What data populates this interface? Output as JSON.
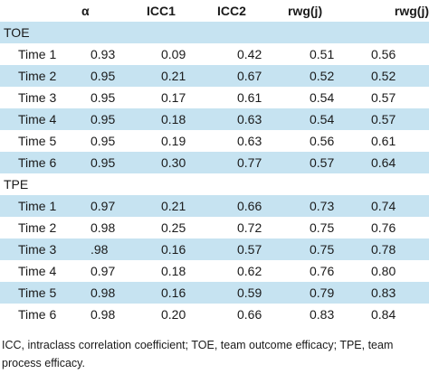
{
  "header": {
    "blank": "",
    "alpha": "α",
    "icc1": "ICC1",
    "icc2": "ICC2",
    "rwg1": "rwg(j)",
    "rwg2": "rwg(j)"
  },
  "groups": [
    {
      "name": "TOE",
      "rows": [
        {
          "label": "Time 1",
          "alpha": "0.93",
          "icc1": "0.09",
          "icc2": "0.42",
          "rwg1": "0.51",
          "rwg2": "0.56"
        },
        {
          "label": "Time 2",
          "alpha": "0.95",
          "icc1": "0.21",
          "icc2": "0.67",
          "rwg1": "0.52",
          "rwg2": "0.52"
        },
        {
          "label": "Time 3",
          "alpha": "0.95",
          "icc1": "0.17",
          "icc2": "0.61",
          "rwg1": "0.54",
          "rwg2": "0.57"
        },
        {
          "label": "Time 4",
          "alpha": "0.95",
          "icc1": "0.18",
          "icc2": "0.63",
          "rwg1": "0.54",
          "rwg2": "0.57"
        },
        {
          "label": "Time 5",
          "alpha": "0.95",
          "icc1": "0.19",
          "icc2": "0.63",
          "rwg1": "0.56",
          "rwg2": "0.61"
        },
        {
          "label": "Time 6",
          "alpha": "0.95",
          "icc1": "0.30",
          "icc2": "0.77",
          "rwg1": "0.57",
          "rwg2": "0.64"
        }
      ]
    },
    {
      "name": "TPE",
      "rows": [
        {
          "label": "Time 1",
          "alpha": "0.97",
          "icc1": "0.21",
          "icc2": "0.66",
          "rwg1": "0.73",
          "rwg2": "0.74"
        },
        {
          "label": "Time 2",
          "alpha": "0.98",
          "icc1": "0.25",
          "icc2": "0.72",
          "rwg1": "0.75",
          "rwg2": "0.76"
        },
        {
          "label": "Time 3",
          "alpha": ".98",
          "icc1": "0.16",
          "icc2": "0.57",
          "rwg1": "0.75",
          "rwg2": "0.78"
        },
        {
          "label": "Time 4",
          "alpha": "0.97",
          "icc1": "0.18",
          "icc2": "0.62",
          "rwg1": "0.76",
          "rwg2": "0.80"
        },
        {
          "label": "Time 5",
          "alpha": "0.98",
          "icc1": "0.16",
          "icc2": "0.59",
          "rwg1": "0.79",
          "rwg2": "0.83"
        },
        {
          "label": "Time 6",
          "alpha": "0.98",
          "icc1": "0.20",
          "icc2": "0.66",
          "rwg1": "0.83",
          "rwg2": "0.84"
        }
      ]
    }
  ],
  "footnote": "ICC, intraclass correlation coefficient; TOE, team outcome efficacy; TPE, team process efficacy.",
  "colors": {
    "shade": "#c6e3f1",
    "text": "#1a1a1a"
  }
}
